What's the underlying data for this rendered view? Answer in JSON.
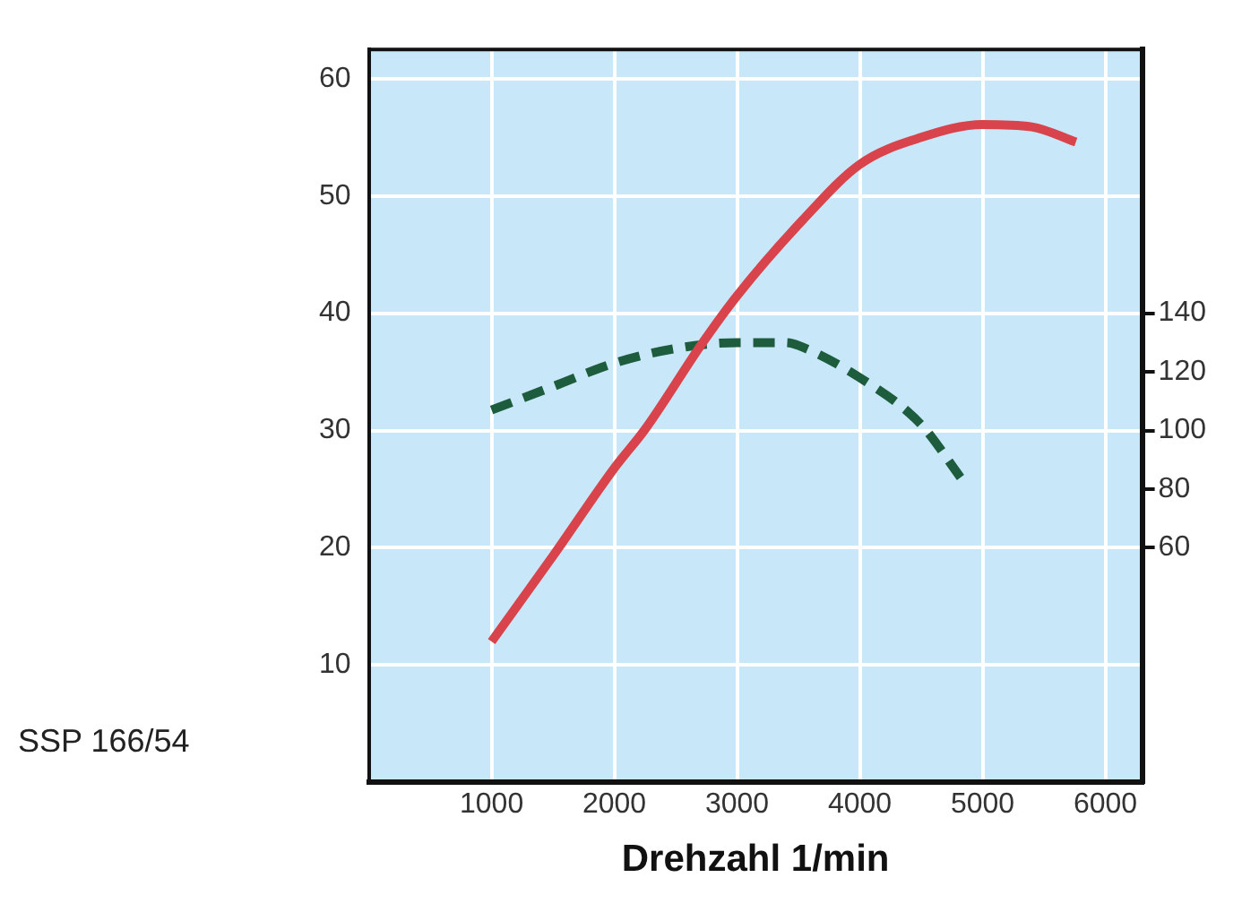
{
  "chart_data": {
    "type": "line",
    "xlabel": "Drehzahl 1/min",
    "annotations": [
      "SSP 166/54"
    ],
    "xlim": [
      0,
      6300
    ],
    "xticks": [
      1000,
      2000,
      3000,
      4000,
      5000,
      6000
    ],
    "ylim": [
      0,
      62.5
    ],
    "yticks": [
      10,
      20,
      30,
      40,
      50,
      60
    ],
    "y2lim": [
      -20,
      230
    ],
    "y2ticks": [
      60,
      80,
      100,
      120,
      140
    ],
    "grid": true,
    "legend": false,
    "marker": "none",
    "series": [
      {
        "color": "#d9434b",
        "line_style": "solid",
        "x": [
          1000,
          1500,
          2000,
          2250,
          2720,
          3000,
          3530,
          4000,
          4500,
          5000,
          5400,
          5760
        ],
        "values": [
          12,
          19.3,
          26.8,
          30.1,
          37.5,
          41.5,
          47.9,
          52.7,
          55,
          56.1,
          55.9,
          54.6
        ]
      },
      {
        "color": "#1e5c3e",
        "line_style": "dashed",
        "axis": "y2",
        "x": [
          1000,
          1500,
          2000,
          2500,
          3000,
          3400,
          3500,
          4000,
          4500,
          4820
        ],
        "values": [
          107,
          115,
          123,
          128,
          130,
          130,
          129,
          118,
          102,
          84
        ]
      }
    ]
  }
}
